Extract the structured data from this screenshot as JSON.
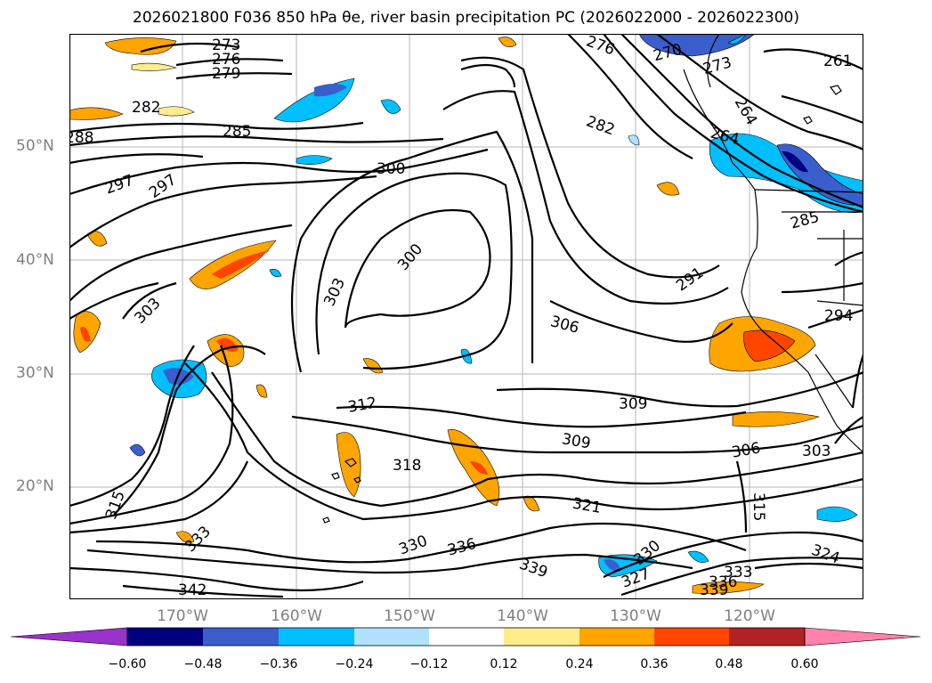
{
  "title": "2026021800 F036 850 hPa θe, river basin precipitation PC (2026022000 - 2026022300)",
  "map": {
    "lat_labels": [
      "50°N",
      "40°N",
      "30°N",
      "20°N"
    ],
    "lon_labels": [
      "170°W",
      "160°W",
      "150°W",
      "140°W",
      "130°W",
      "120°W"
    ],
    "contour_labels": [
      "273",
      "276",
      "279",
      "282",
      "285",
      "300",
      "297",
      "297",
      "303",
      "300",
      "303",
      "306",
      "309",
      "309",
      "312",
      "315",
      "318",
      "321",
      "324",
      "330",
      "330",
      "333",
      "336",
      "339",
      "342",
      "327",
      "333",
      "336",
      "339",
      "306",
      "303",
      "294",
      "291",
      "285",
      "282",
      "276",
      "270",
      "273",
      "264",
      "264",
      "261",
      "315",
      "288"
    ]
  },
  "colorbar": {
    "colors": [
      "#9933cc",
      "#000080",
      "#3a5fcd",
      "#00bfff",
      "#b0e2ff",
      "#ffffff",
      "#ffec8b",
      "#ffa500",
      "#ff4500",
      "#b22222",
      "#ff82ab"
    ],
    "tick_labels": [
      "−0.60",
      "−0.48",
      "−0.36",
      "−0.24",
      "−0.12",
      "0.12",
      "0.24",
      "0.36",
      "0.48",
      "0.60"
    ]
  }
}
